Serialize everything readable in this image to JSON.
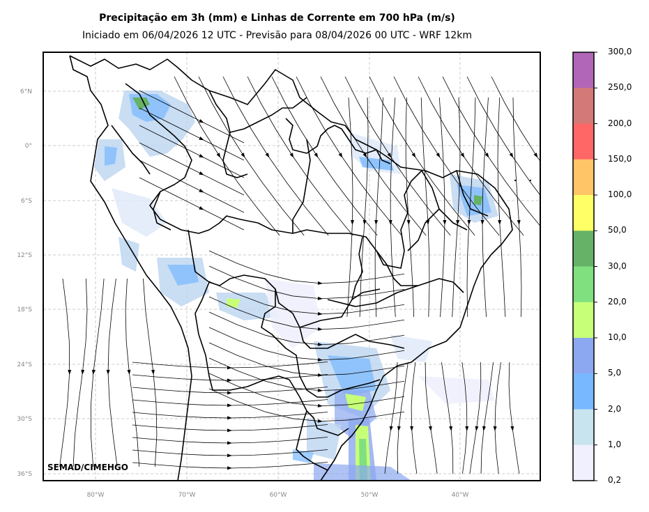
{
  "title": "Precipitação em 3h (mm) e Linhas de Corrente em 700 hPa (m/s)",
  "subtitle": "Iniciado em 06/04/2026 12 UTC - Previsão para 08/04/2026 00 UTC - WRF 12km",
  "credit": "SEMAD/CIMEHGO",
  "map": {
    "lat_labels": [
      "6°N",
      "0°",
      "6°S",
      "12°S",
      "18°S",
      "24°S",
      "30°S",
      "36°S"
    ],
    "lon_labels": [
      "80°W",
      "70°W",
      "60°W",
      "50°W",
      "40°W"
    ],
    "gridlines": true
  },
  "colorbar": {
    "labels": [
      "300,0",
      "250,0",
      "200,0",
      "150,0",
      "100,0",
      "50,0",
      "30,0",
      "20,0",
      "10,0",
      "5,0",
      "2,0",
      "1,0",
      "0,2"
    ],
    "colors_top_to_bottom": [
      "#b266b8",
      "#d37a78",
      "#ff6666",
      "#ffc566",
      "#ffff66",
      "#66b266",
      "#80e080",
      "#c8ff78",
      "#8ca8f0",
      "#78b8ff",
      "#c8e4ef",
      "#f0f0ff"
    ]
  }
}
